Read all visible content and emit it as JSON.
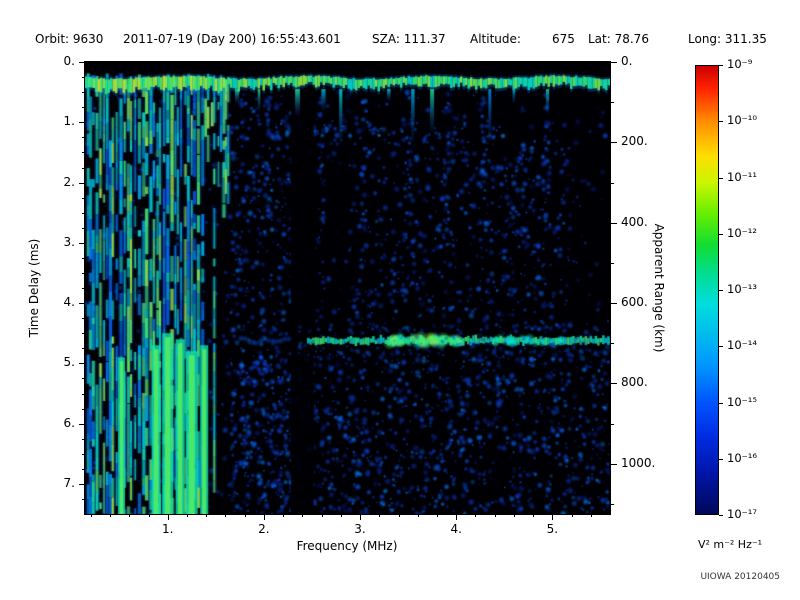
{
  "header": {
    "orbit": "Orbit: 9630",
    "datetime": "2011-07-19 (Day 200) 16:55:43.601",
    "sza": "SZA: 111.37",
    "altitude_label": "Altitude:",
    "altitude_value": "675",
    "lat": "Lat: 78.76",
    "long": "Long: 311.35"
  },
  "chart_data": {
    "type": "heatmap",
    "title": "",
    "xlabel": "Frequency (MHz)",
    "ylabel": "Time Delay (ms)",
    "y2label": "Apparent Range (km)",
    "x_range_mhz": [
      0.14,
      5.6
    ],
    "x_ticks": [
      "1.",
      "2.",
      "3.",
      "4.",
      "5."
    ],
    "x_tick_values": [
      1,
      2,
      3,
      4,
      5
    ],
    "y_range_ms": [
      0,
      7.5
    ],
    "y_ticks": [
      "0.",
      "1.",
      "2.",
      "3.",
      "4.",
      "5.",
      "6.",
      "7."
    ],
    "y_tick_values": [
      0,
      1,
      2,
      3,
      4,
      5,
      6,
      7
    ],
    "y2_ticks": [
      "0.",
      "200.",
      "400.",
      "600.",
      "800.",
      "1000."
    ],
    "y2_tick_values": [
      0,
      200,
      400,
      600,
      800,
      1000
    ],
    "range_km_per_ms": 150,
    "grid": false,
    "colorbar": {
      "unit": "V² m⁻² Hz⁻¹",
      "tick_labels": [
        "10⁻⁹",
        "10⁻¹⁰",
        "10⁻¹¹",
        "10⁻¹²",
        "10⁻¹³",
        "10⁻¹⁴",
        "10⁻¹⁵",
        "10⁻¹⁶",
        "10⁻¹⁷"
      ],
      "max_exp": -9,
      "min_exp": -17,
      "gradient": [
        "#cc0000 0%",
        "#ff2200 5%",
        "#ff8800 12%",
        "#ffdd00 20%",
        "#ccf500 26%",
        "#66ee00 33%",
        "#11dd33 40%",
        "#00dd99 47%",
        "#00dddd 53%",
        "#00bbee 60%",
        "#0095ff 67%",
        "#0055ff 75%",
        "#002be0 83%",
        "#0015a8 91%",
        "#000858 100%"
      ]
    },
    "features": {
      "ionospheric_noise_band_mhz": [
        0.14,
        1.62
      ],
      "top_echo_band_ms": 0.3,
      "horizontal_echo_ms": 4.62,
      "horizontal_echo_start_mhz": 2.45,
      "dark_gap_mhz": [
        2.28,
        2.52
      ],
      "background": "black with sparse blue speckle noise"
    },
    "seed": 1234567
  },
  "footer": {
    "credit": "UIOWA 20120405"
  }
}
